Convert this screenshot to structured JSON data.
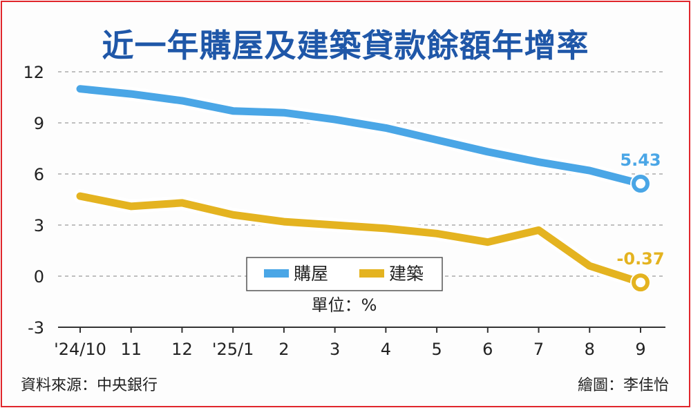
{
  "title": "近一年購屋及建築貸款餘額年增率",
  "unit_label": "單位：%",
  "source": "資料來源：中央銀行",
  "credit": "繪圖：李佳怡",
  "colors": {
    "home": "#4aa6e6",
    "construction": "#e4b320",
    "title": "#1f57a8",
    "border": "#e0252b"
  },
  "chart_data": {
    "type": "line",
    "title": "近一年購屋及建築貸款餘額年增率",
    "xlabel": "",
    "ylabel": "單位：%",
    "categories": [
      "'24/10",
      "11",
      "12",
      "'25/1",
      "2",
      "3",
      "4",
      "5",
      "6",
      "7",
      "8",
      "9"
    ],
    "ylim": [
      -3,
      12
    ],
    "yticks": [
      -3,
      0,
      3,
      6,
      9,
      12
    ],
    "grid": true,
    "legend": "bottom-center",
    "series": [
      {
        "name": "購屋",
        "color": "#4aa6e6",
        "values": [
          11.0,
          10.7,
          10.3,
          9.7,
          9.6,
          9.2,
          8.7,
          8.0,
          7.3,
          6.7,
          6.2,
          5.43
        ],
        "end_label": "5.43"
      },
      {
        "name": "建築",
        "color": "#e4b320",
        "values": [
          4.7,
          4.1,
          4.3,
          3.6,
          3.2,
          3.0,
          2.8,
          2.5,
          2.0,
          2.7,
          0.6,
          -0.37
        ],
        "end_label": "-0.37"
      }
    ]
  }
}
